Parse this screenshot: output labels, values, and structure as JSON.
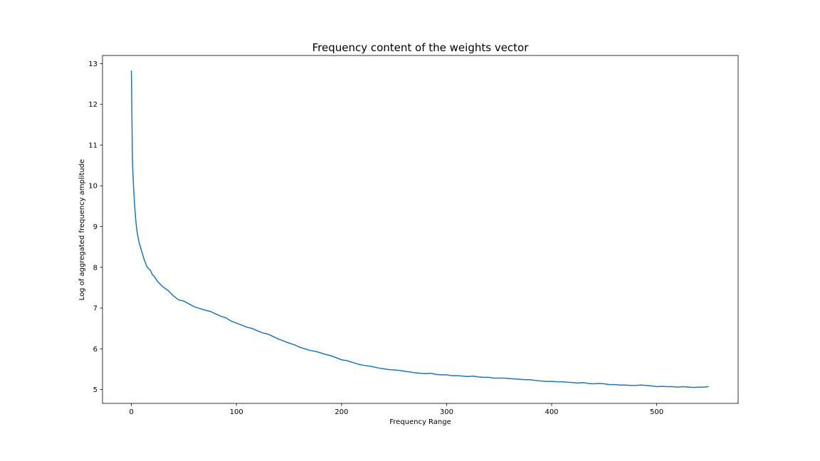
{
  "chart_data": {
    "type": "line",
    "title": "Frequency content of the weights vector",
    "xlabel": "Frequency Range",
    "ylabel": "Log of aggregated frequency amplitude",
    "xlim": [
      -27.5,
      577.5
    ],
    "ylim": [
      4.66,
      13.2
    ],
    "xticks": [
      0,
      100,
      200,
      300,
      400,
      500
    ],
    "yticks": [
      5,
      6,
      7,
      8,
      9,
      10,
      11,
      12,
      13
    ],
    "grid": false,
    "legend": "none",
    "color": "#1f77b4",
    "series": [
      {
        "x": [
          0,
          1,
          2,
          3,
          4,
          5,
          6,
          7,
          8,
          10,
          12,
          15,
          18,
          20,
          22,
          25,
          28,
          30,
          35,
          40,
          45,
          50,
          55,
          60,
          65,
          70,
          75,
          80,
          85,
          90,
          95,
          100,
          105,
          110,
          115,
          120,
          125,
          130,
          135,
          140,
          145,
          150,
          155,
          160,
          165,
          170,
          175,
          180,
          185,
          190,
          195,
          200,
          205,
          210,
          215,
          220,
          225,
          230,
          235,
          240,
          245,
          250,
          255,
          260,
          265,
          270,
          275,
          280,
          285,
          290,
          295,
          300,
          305,
          310,
          315,
          320,
          325,
          330,
          335,
          340,
          345,
          350,
          355,
          360,
          365,
          370,
          375,
          380,
          385,
          390,
          395,
          400,
          405,
          410,
          415,
          420,
          425,
          430,
          435,
          440,
          445,
          450,
          455,
          460,
          465,
          470,
          475,
          480,
          485,
          490,
          495,
          500,
          505,
          510,
          515,
          520,
          525,
          530,
          535,
          540,
          545,
          549
        ],
        "y": [
          12.82,
          10.6,
          10.0,
          9.55,
          9.2,
          8.95,
          8.78,
          8.65,
          8.55,
          8.38,
          8.2,
          8.0,
          7.93,
          7.82,
          7.77,
          7.65,
          7.57,
          7.52,
          7.43,
          7.3,
          7.2,
          7.17,
          7.1,
          7.03,
          6.99,
          6.95,
          6.92,
          6.86,
          6.8,
          6.76,
          6.68,
          6.63,
          6.58,
          6.53,
          6.5,
          6.44,
          6.39,
          6.36,
          6.3,
          6.24,
          6.19,
          6.14,
          6.1,
          6.04,
          6.0,
          5.96,
          5.94,
          5.9,
          5.86,
          5.83,
          5.78,
          5.73,
          5.71,
          5.67,
          5.63,
          5.6,
          5.58,
          5.56,
          5.53,
          5.51,
          5.49,
          5.48,
          5.47,
          5.45,
          5.43,
          5.41,
          5.4,
          5.39,
          5.4,
          5.37,
          5.36,
          5.36,
          5.34,
          5.34,
          5.33,
          5.32,
          5.33,
          5.31,
          5.3,
          5.3,
          5.28,
          5.28,
          5.28,
          5.27,
          5.26,
          5.25,
          5.24,
          5.24,
          5.22,
          5.21,
          5.2,
          5.2,
          5.19,
          5.19,
          5.18,
          5.17,
          5.16,
          5.17,
          5.15,
          5.14,
          5.15,
          5.14,
          5.12,
          5.12,
          5.11,
          5.11,
          5.1,
          5.1,
          5.11,
          5.1,
          5.09,
          5.07,
          5.08,
          5.07,
          5.07,
          5.06,
          5.07,
          5.06,
          5.05,
          5.06,
          5.06,
          5.07
        ]
      }
    ]
  }
}
